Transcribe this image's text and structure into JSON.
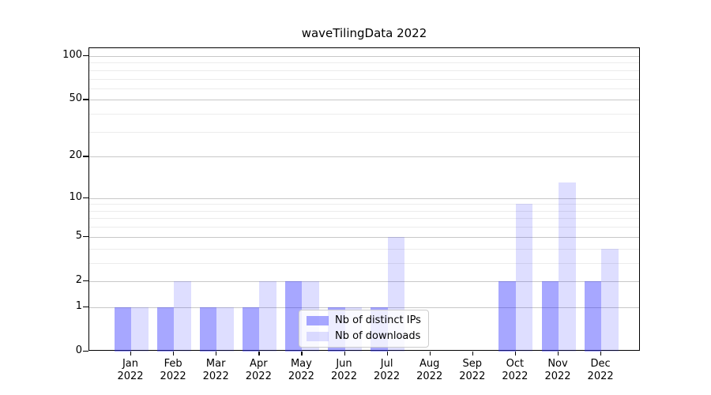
{
  "chart_data": {
    "type": "bar",
    "title": "waveTilingData 2022",
    "categories": [
      "Jan 2022",
      "Feb 2022",
      "Mar 2022",
      "Apr 2022",
      "May 2022",
      "Jun 2022",
      "Jul 2022",
      "Aug 2022",
      "Sep 2022",
      "Oct 2022",
      "Nov 2022",
      "Dec 2022"
    ],
    "series": [
      {
        "name": "Nb of distinct IPs",
        "color": "#2222ff",
        "opacity": 0.4,
        "values": [
          1,
          1,
          1,
          1,
          2,
          1,
          1,
          0,
          0,
          2,
          2,
          2
        ]
      },
      {
        "name": "Nb of downloads",
        "color": "#2222ff",
        "opacity": 0.15,
        "values": [
          1,
          2,
          1,
          2,
          2,
          1,
          5,
          0,
          0,
          9,
          13,
          4
        ]
      }
    ],
    "xlabel": "",
    "ylabel": "",
    "yscale": "symlog",
    "ylim": [
      0,
      100
    ],
    "yticks": [
      0,
      1,
      2,
      5,
      10,
      20,
      50,
      100
    ],
    "minor_yticks": [
      3,
      4,
      6,
      7,
      8,
      9,
      30,
      40,
      60,
      70,
      80,
      90
    ],
    "grid": {
      "on": true,
      "major_color": "#c8c8c8",
      "minor_color": "#ececec"
    },
    "axis_color": "#000000",
    "legend": {
      "position": "lower-center-inside"
    }
  }
}
